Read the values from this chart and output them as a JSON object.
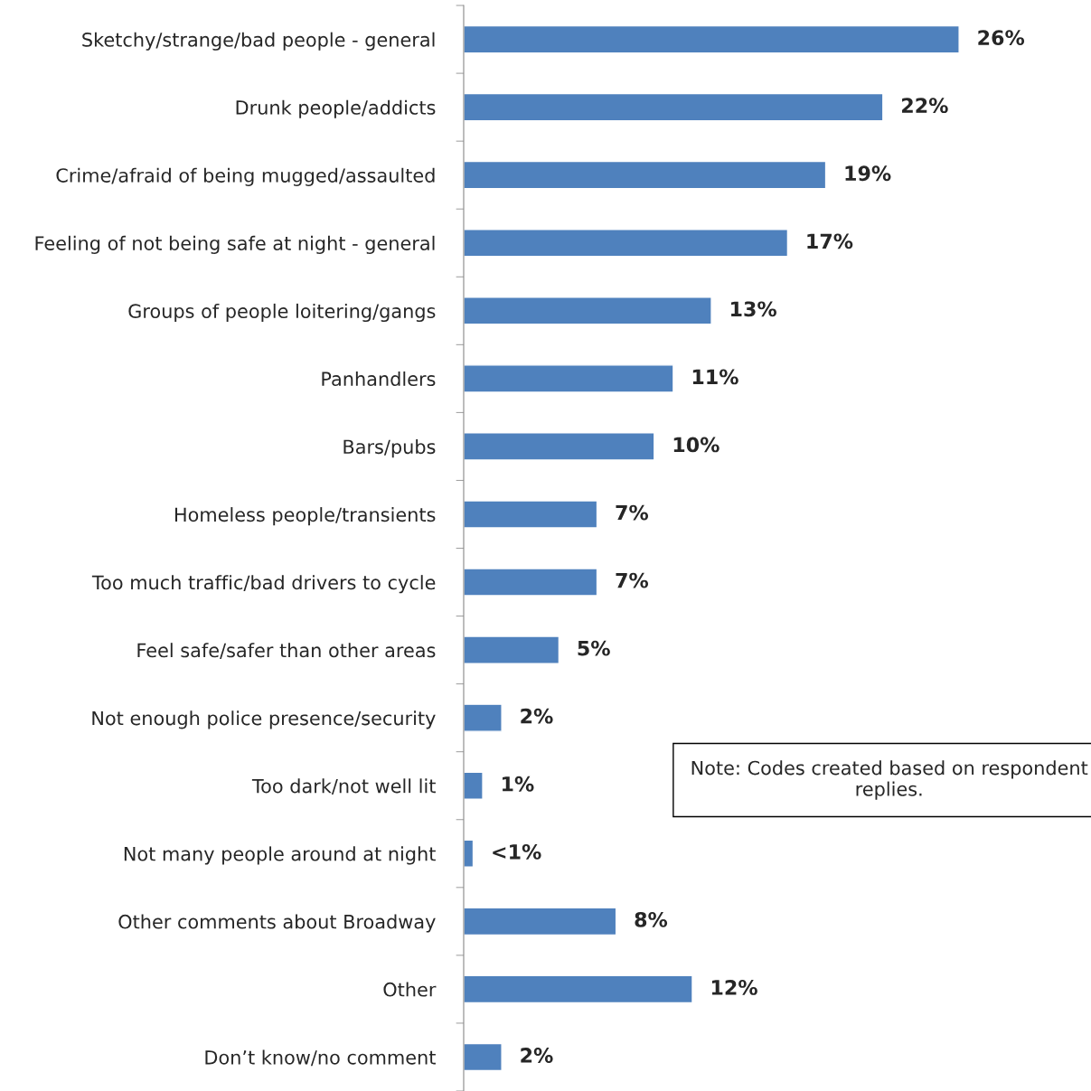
{
  "chart_data": {
    "type": "bar",
    "orientation": "horizontal",
    "categories": [
      "Sketchy/strange/bad people - general",
      "Drunk people/addicts",
      "Crime/afraid of being mugged/assaulted",
      "Feeling of not being safe at night - general",
      "Groups of people loitering/gangs",
      "Panhandlers",
      "Bars/pubs",
      "Homeless people/transients",
      "Too much traffic/bad drivers to cycle",
      "Feel safe/safer than other areas",
      "Not enough police presence/security",
      "Too dark/not well lit",
      "Not many people around at night",
      "Other comments about Broadway",
      "Other",
      "Don’t know/no comment"
    ],
    "values": [
      26,
      22,
      19,
      17,
      13,
      11,
      10,
      7,
      7,
      5,
      2,
      1,
      0.5,
      8,
      12,
      2
    ],
    "value_labels": [
      "26%",
      "22%",
      "19%",
      "17%",
      "13%",
      "11%",
      "10%",
      "7%",
      "7%",
      "5%",
      "2%",
      "1%",
      "<1%",
      "8%",
      "12%",
      "2%"
    ],
    "color": "#4f81bd",
    "annotations": [
      "Note: Codes created based on respondent replies."
    ],
    "grid": false,
    "legend": false
  }
}
